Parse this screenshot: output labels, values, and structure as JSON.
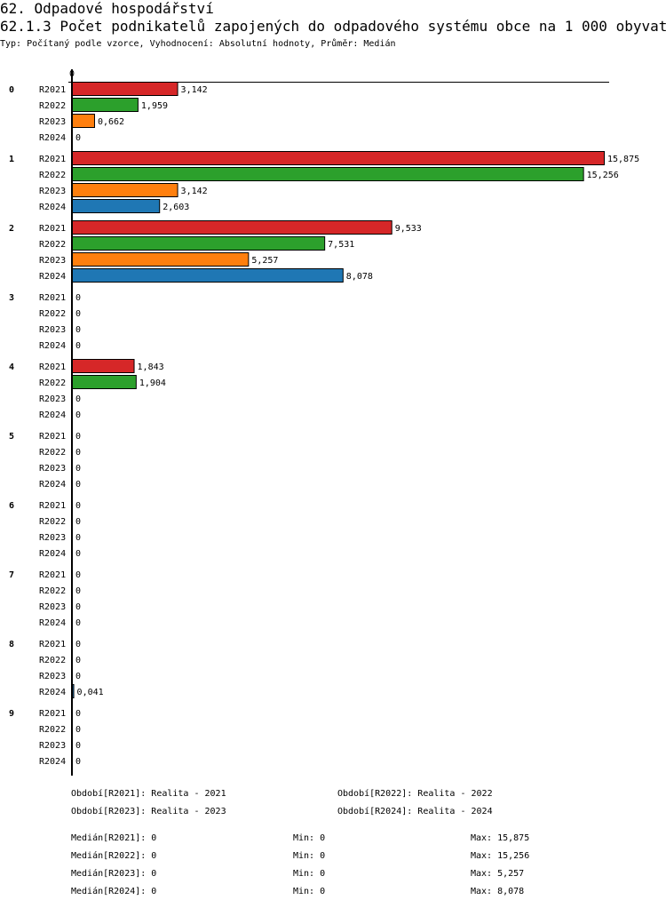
{
  "header": {
    "section": "62. Odpadové hospodářství",
    "title": "62.1.3 Počet podnikatelů zapojených do odpadového systému obce na 1 000 obyvatel",
    "subtitle": "Typ: Počítaný podle vzorce, Vyhodnocení: Absolutní hodnoty, Průměr: Medián"
  },
  "chart_data": {
    "type": "bar",
    "orientation": "horizontal",
    "x_tick_labels": [
      "0"
    ],
    "xlim": [
      0,
      15.875
    ],
    "series_colors": {
      "R2021": "#d62728",
      "R2022": "#2ca02c",
      "R2023": "#ff7f0e",
      "R2024": "#1f77b4"
    },
    "series_names": [
      "R2021",
      "R2022",
      "R2023",
      "R2024"
    ],
    "categories": [
      "0",
      "1",
      "2",
      "3",
      "4",
      "5",
      "6",
      "7",
      "8",
      "9"
    ],
    "series": [
      {
        "name": "R2021",
        "values": [
          3.142,
          15.875,
          9.533,
          0,
          1.843,
          0,
          0,
          0,
          0,
          0
        ],
        "labels": [
          "3,142",
          "15,875",
          "9,533",
          "0",
          "1,843",
          "0",
          "0",
          "0",
          "0",
          "0"
        ]
      },
      {
        "name": "R2022",
        "values": [
          1.959,
          15.256,
          7.531,
          0,
          1.904,
          0,
          0,
          0,
          0,
          0
        ],
        "labels": [
          "1,959",
          "15,256",
          "7,531",
          "0",
          "1,904",
          "0",
          "0",
          "0",
          "0",
          "0"
        ]
      },
      {
        "name": "R2023",
        "values": [
          0.662,
          3.142,
          5.257,
          0,
          0,
          0,
          0,
          0,
          0,
          0
        ],
        "labels": [
          "0,662",
          "3,142",
          "5,257",
          "0",
          "0",
          "0",
          "0",
          "0",
          "0",
          "0"
        ]
      },
      {
        "name": "R2024",
        "values": [
          0,
          2.603,
          8.078,
          0,
          0,
          0,
          0,
          0,
          0.041,
          0
        ],
        "labels": [
          "0",
          "2,603",
          "8,078",
          "0",
          "0",
          "0",
          "0",
          "0",
          "0,041",
          "0"
        ]
      }
    ],
    "legend": [
      "Období[R2021]: Realita - 2021",
      "Období[R2022]: Realita - 2022",
      "Období[R2023]: Realita - 2023",
      "Období[R2024]: Realita - 2024"
    ],
    "stats": [
      {
        "median": "Medián[R2021]: 0",
        "min": "Min: 0",
        "max": "Max: 15,875"
      },
      {
        "median": "Medián[R2022]: 0",
        "min": "Min: 0",
        "max": "Max: 15,256"
      },
      {
        "median": "Medián[R2023]: 0",
        "min": "Min: 0",
        "max": "Max: 5,257"
      },
      {
        "median": "Medián[R2024]: 0",
        "min": "Min: 0",
        "max": "Max: 8,078"
      }
    ]
  }
}
